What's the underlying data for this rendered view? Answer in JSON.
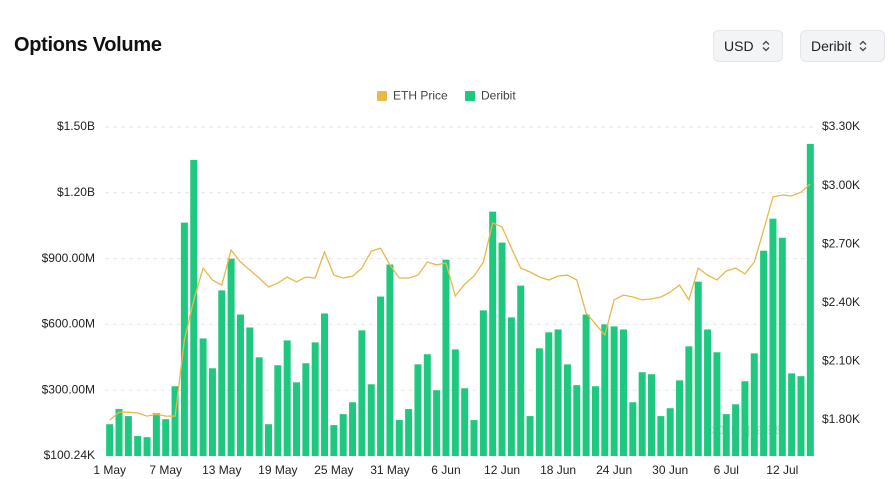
{
  "header": {
    "title": "Options Volume",
    "currency": "USD",
    "exchange": "Deribit"
  },
  "chart_data": {
    "type": "bar",
    "watermark": "coinglass",
    "categories": [
      "1 May",
      null,
      null,
      null,
      null,
      null,
      "7 May",
      null,
      null,
      null,
      null,
      null,
      "13 May",
      null,
      null,
      null,
      null,
      null,
      "19 May",
      null,
      null,
      null,
      null,
      null,
      "25 May",
      null,
      null,
      null,
      null,
      null,
      "31 May",
      null,
      null,
      null,
      null,
      null,
      "6 Jun",
      null,
      null,
      null,
      null,
      null,
      "12 Jun",
      null,
      null,
      null,
      null,
      null,
      "18 Jun",
      null,
      null,
      null,
      null,
      null,
      "24 Jun",
      null,
      null,
      null,
      null,
      null,
      "30 Jun",
      null,
      null,
      null,
      null,
      null,
      "6 Jul",
      null,
      null,
      null,
      null,
      null,
      "12 Jul",
      null,
      null,
      null
    ],
    "series": [
      {
        "name": "ETH Price",
        "type": "line",
        "axis": "y2",
        "color": "#e8b84a",
        "values": [
          1800,
          1840,
          1840,
          1836,
          1820,
          1830,
          1820,
          1820,
          2210,
          2415,
          2578,
          2517,
          2490,
          2670,
          2609,
          2568,
          2527,
          2481,
          2501,
          2532,
          2507,
          2532,
          2527,
          2660,
          2542,
          2527,
          2537,
          2578,
          2665,
          2680,
          2594,
          2527,
          2527,
          2542,
          2609,
          2594,
          2604,
          2435,
          2496,
          2537,
          2609,
          2809,
          2788,
          2680,
          2578,
          2558,
          2532,
          2517,
          2537,
          2542,
          2517,
          2348,
          2292,
          2235,
          2415,
          2440,
          2430,
          2415,
          2420,
          2430,
          2455,
          2491,
          2415,
          2578,
          2542,
          2517,
          2563,
          2578,
          2548,
          2609,
          2773,
          2942,
          2952,
          2947,
          2967,
          3008
        ]
      },
      {
        "name": "Deribit",
        "type": "bar",
        "color": "#1ec87f",
        "values": [
          145000000,
          214000000,
          182000000,
          91000000,
          86000000,
          195000000,
          168000000,
          318000000,
          1064000000,
          1350000000,
          536000000,
          400000000,
          755000000,
          900000000,
          645000000,
          586000000,
          450000000,
          145000000,
          414000000,
          527000000,
          336000000,
          423000000,
          518000000,
          650000000,
          141000000,
          191000000,
          245000000,
          573000000,
          327000000,
          727000000,
          873000000,
          164000000,
          214000000,
          418000000,
          464000000,
          300000000,
          895000000,
          486000000,
          309000000,
          164000000,
          664000000,
          1114000000,
          973000000,
          632000000,
          777000000,
          182000000,
          491000000,
          564000000,
          577000000,
          418000000,
          323000000,
          645000000,
          318000000,
          600000000,
          591000000,
          577000000,
          245000000,
          382000000,
          373000000,
          182000000,
          218000000,
          345000000,
          500000000,
          795000000,
          577000000,
          473000000,
          191000000,
          236000000,
          341000000,
          468000000,
          936000000,
          1082000000,
          995000000,
          377000000,
          364000000,
          1423000000
        ]
      }
    ],
    "ylim": [
      100240,
      1500000000
    ],
    "yticks": [
      {
        "value": 100240,
        "label": "$100.24K"
      },
      {
        "value": 300000000,
        "label": "$300.00M"
      },
      {
        "value": 600000000,
        "label": "$600.00M"
      },
      {
        "value": 900000000,
        "label": "$900.00M"
      },
      {
        "value": 1200000000,
        "label": "$1.20B"
      },
      {
        "value": 1500000000,
        "label": "$1.50B"
      }
    ],
    "y2lim": [
      1616,
      3300
    ],
    "y2ticks": [
      {
        "value": 1800,
        "label": "$1.80K"
      },
      {
        "value": 2100,
        "label": "$2.10K"
      },
      {
        "value": 2400,
        "label": "$2.40K"
      },
      {
        "value": 2700,
        "label": "$2.70K"
      },
      {
        "value": 3000,
        "label": "$3.00K"
      },
      {
        "value": 3300,
        "label": "$3.30K"
      }
    ],
    "grid": true,
    "legend": "top"
  }
}
